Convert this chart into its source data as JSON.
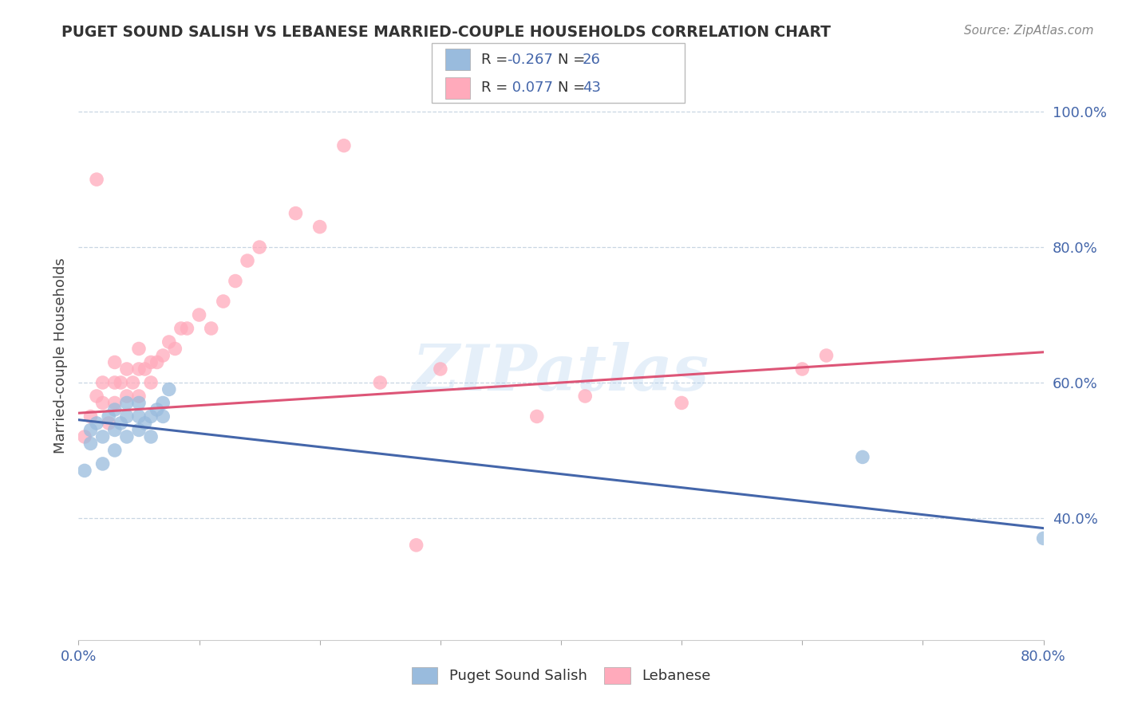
{
  "title": "PUGET SOUND SALISH VS LEBANESE MARRIED-COUPLE HOUSEHOLDS CORRELATION CHART",
  "source": "Source: ZipAtlas.com",
  "ylabel": "Married-couple Households",
  "xlim": [
    0.0,
    0.8
  ],
  "ylim": [
    0.22,
    1.06
  ],
  "xticks": [
    0.0,
    0.1,
    0.2,
    0.3,
    0.4,
    0.5,
    0.6,
    0.7,
    0.8
  ],
  "xticklabels": [
    "0.0%",
    "",
    "",
    "",
    "",
    "",
    "",
    "",
    "80.0%"
  ],
  "ytick_positions": [
    0.4,
    0.6,
    0.8,
    1.0
  ],
  "yticklabels": [
    "40.0%",
    "60.0%",
    "80.0%",
    "100.0%"
  ],
  "blue_color": "#99BBDD",
  "pink_color": "#FFAABB",
  "blue_line_color": "#4466AA",
  "pink_line_color": "#DD5577",
  "watermark": "ZIPatlas",
  "blue_scatter_x": [
    0.005,
    0.01,
    0.01,
    0.015,
    0.02,
    0.02,
    0.025,
    0.03,
    0.03,
    0.03,
    0.035,
    0.04,
    0.04,
    0.04,
    0.05,
    0.05,
    0.05,
    0.055,
    0.06,
    0.06,
    0.065,
    0.07,
    0.07,
    0.075,
    0.65,
    0.8
  ],
  "blue_scatter_y": [
    0.47,
    0.51,
    0.53,
    0.54,
    0.48,
    0.52,
    0.55,
    0.5,
    0.53,
    0.56,
    0.54,
    0.52,
    0.55,
    0.57,
    0.53,
    0.55,
    0.57,
    0.54,
    0.52,
    0.55,
    0.56,
    0.55,
    0.57,
    0.59,
    0.49,
    0.37
  ],
  "pink_scatter_x": [
    0.005,
    0.01,
    0.015,
    0.02,
    0.02,
    0.025,
    0.03,
    0.03,
    0.03,
    0.035,
    0.04,
    0.04,
    0.045,
    0.05,
    0.05,
    0.05,
    0.055,
    0.06,
    0.06,
    0.065,
    0.07,
    0.075,
    0.08,
    0.085,
    0.09,
    0.1,
    0.11,
    0.12,
    0.13,
    0.14,
    0.15,
    0.18,
    0.2,
    0.25,
    0.3,
    0.38,
    0.42,
    0.5,
    0.6,
    0.62,
    0.015,
    0.22,
    0.28
  ],
  "pink_scatter_y": [
    0.52,
    0.55,
    0.58,
    0.57,
    0.6,
    0.54,
    0.57,
    0.6,
    0.63,
    0.6,
    0.58,
    0.62,
    0.6,
    0.58,
    0.62,
    0.65,
    0.62,
    0.6,
    0.63,
    0.63,
    0.64,
    0.66,
    0.65,
    0.68,
    0.68,
    0.7,
    0.68,
    0.72,
    0.75,
    0.78,
    0.8,
    0.85,
    0.83,
    0.6,
    0.62,
    0.55,
    0.58,
    0.57,
    0.62,
    0.64,
    0.9,
    0.95,
    0.36
  ],
  "blue_trend_x": [
    0.0,
    0.8
  ],
  "blue_trend_y": [
    0.545,
    0.385
  ],
  "pink_trend_x": [
    0.0,
    0.8
  ],
  "pink_trend_y": [
    0.555,
    0.645
  ]
}
